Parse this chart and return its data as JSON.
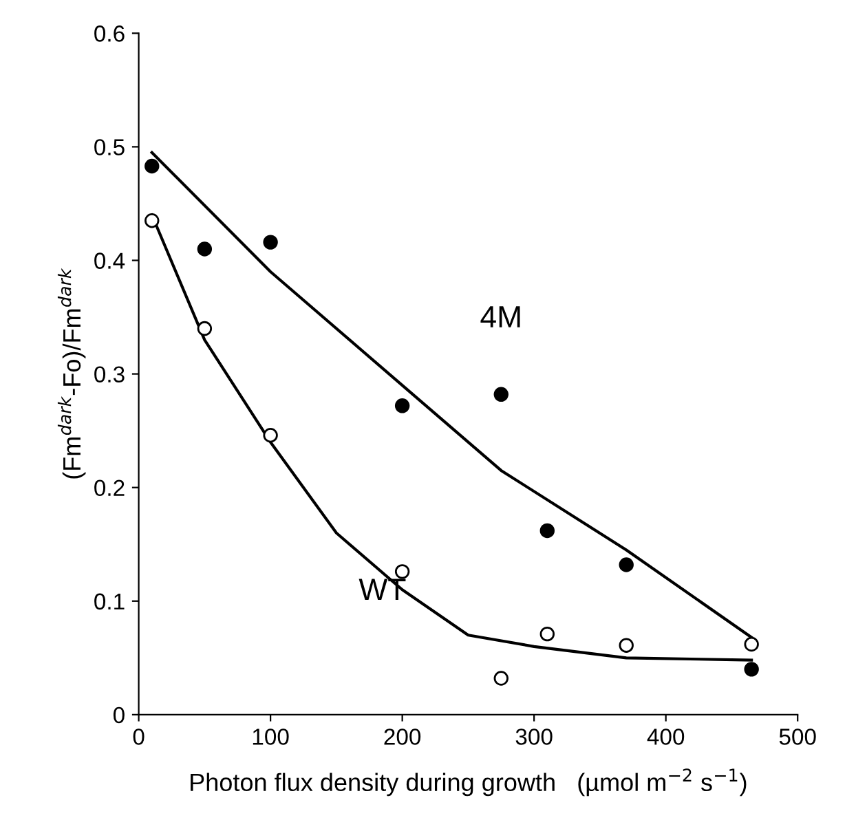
{
  "chart_data": {
    "type": "scatter",
    "xlabel": "Photon flux density during growth   (µmol m$^{−2}$ s$^{−1}$)",
    "ylabel": "(Fm$^{dark}$-Fo)/Fm$^{dark}$",
    "xlim": [
      0,
      500
    ],
    "ylim": [
      0,
      0.6
    ],
    "xticks": [
      0,
      100,
      200,
      300,
      400,
      500
    ],
    "yticks": [
      0,
      0.1,
      0.2,
      0.3,
      0.4,
      0.5,
      0.6
    ],
    "grid": false,
    "legend": false,
    "series": [
      {
        "marker": "circle",
        "color": "#000000",
        "x": [
          10,
          50,
          100,
          200,
          275,
          310,
          370,
          465
        ],
        "values": [
          0.483,
          0.41,
          0.416,
          0.272,
          0.282,
          0.162,
          0.132,
          0.04
        ]
      },
      {
        "marker": "circle",
        "color": "#ffffff",
        "x": [
          10,
          50,
          100,
          200,
          275,
          310,
          370,
          465
        ],
        "values": [
          0.435,
          0.34,
          0.246,
          0.126,
          0.032,
          0.071,
          0.061,
          0.062
        ]
      },
      {
        "type": "line",
        "marker": "none",
        "color": "#000000",
        "x": [
          10,
          100,
          200,
          275,
          370,
          465
        ],
        "values": [
          0.495,
          0.39,
          0.29,
          0.215,
          0.145,
          0.068
        ]
      },
      {
        "type": "line",
        "marker": "none",
        "color": "#000000",
        "x": [
          10,
          50,
          100,
          150,
          200,
          250,
          300,
          370,
          465
        ],
        "values": [
          0.44,
          0.33,
          0.24,
          0.16,
          0.11,
          0.07,
          0.06,
          0.05,
          0.048
        ]
      }
    ],
    "annotations": [
      "4M",
      "WT"
    ]
  }
}
